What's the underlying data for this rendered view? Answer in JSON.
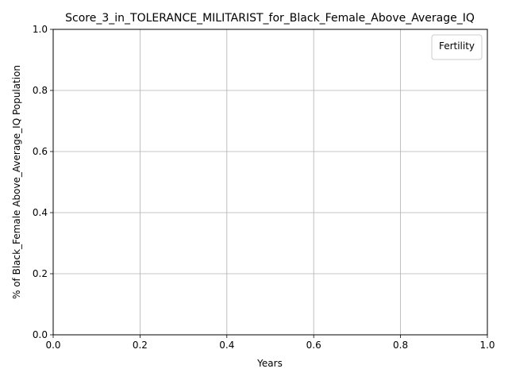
{
  "chart_data": {
    "type": "line",
    "title": "Score_3_in_TOLERANCE_MILITARIST_for_Black_Female_Above_Average_IQ",
    "xlabel": "Years",
    "ylabel": "% of Black_Female Above_Average_IQ Population",
    "xlim": [
      0.0,
      1.0
    ],
    "ylim": [
      0.0,
      1.0
    ],
    "x_ticks": [
      "0.0",
      "0.2",
      "0.4",
      "0.6",
      "0.8",
      "1.0"
    ],
    "y_ticks": [
      "0.0",
      "0.2",
      "0.4",
      "0.6",
      "0.8",
      "1.0"
    ],
    "grid": true,
    "legend": {
      "title": "Fertility",
      "placement": "top-right",
      "entries": []
    },
    "series": []
  },
  "colors": {
    "background": "#ffffff",
    "axis": "#000000",
    "grid": "#b0b0b0",
    "legend_border": "#cccccc"
  }
}
